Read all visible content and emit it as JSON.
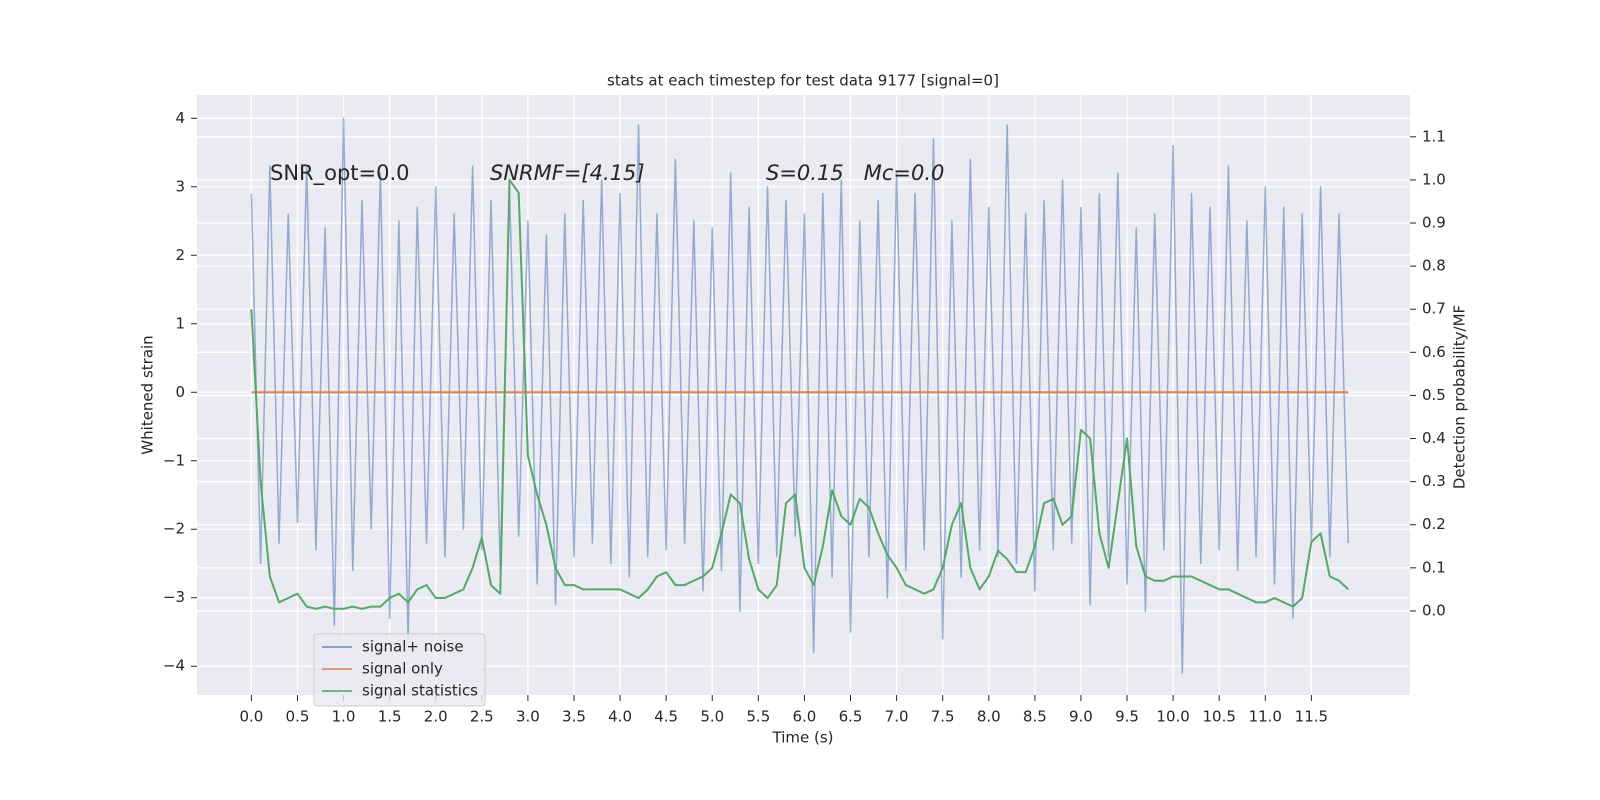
{
  "chart_data": {
    "type": "line",
    "title": "stats at each timestep for test data 9177 [signal=0]",
    "xlabel": "Time (s)",
    "ylabel": "Whitened strain",
    "y2label": "Detection probability/MF",
    "annotations": [
      "SNR_opt=0.0",
      "SNRMF=[4.15]",
      "S=0.15   Mc=0.0"
    ],
    "x": [
      0,
      0.1,
      0.2,
      0.3,
      0.4,
      0.5,
      0.6,
      0.7,
      0.8,
      0.9,
      1,
      1.1,
      1.2,
      1.3,
      1.4,
      1.5,
      1.6,
      1.7,
      1.8,
      1.9,
      2,
      2.1,
      2.2,
      2.3,
      2.4,
      2.5,
      2.6,
      2.7,
      2.8,
      2.9,
      3,
      3.1,
      3.2,
      3.3,
      3.4,
      3.5,
      3.6,
      3.7,
      3.8,
      3.9,
      4,
      4.1,
      4.2,
      4.3,
      4.4,
      4.5,
      4.6,
      4.7,
      4.8,
      4.9,
      5,
      5.1,
      5.2,
      5.3,
      5.4,
      5.5,
      5.6,
      5.7,
      5.8,
      5.9,
      6,
      6.1,
      6.2,
      6.3,
      6.4,
      6.5,
      6.6,
      6.7,
      6.8,
      6.9,
      7,
      7.1,
      7.2,
      7.3,
      7.4,
      7.5,
      7.6,
      7.7,
      7.8,
      7.9,
      8,
      8.1,
      8.2,
      8.3,
      8.4,
      8.5,
      8.6,
      8.7,
      8.8,
      8.9,
      9,
      9.1,
      9.2,
      9.3,
      9.4,
      9.5,
      9.6,
      9.7,
      9.8,
      9.9,
      10,
      10.1,
      10.2,
      10.3,
      10.4,
      10.5,
      10.6,
      10.7,
      10.8,
      10.9,
      11,
      11.1,
      11.2,
      11.3,
      11.4,
      11.5,
      11.6,
      11.7,
      11.8,
      11.9
    ],
    "series": [
      {
        "name": "signal+ noise",
        "color": "#4c72b0",
        "axis": "y",
        "values": [
          2.9,
          -2.5,
          3.3,
          -2.2,
          2.6,
          -1.9,
          3.3,
          -2.3,
          2.4,
          -3.4,
          4.0,
          -2.6,
          2.8,
          -2.0,
          3.2,
          -3.3,
          2.5,
          -3.6,
          2.7,
          -2.2,
          3.0,
          -2.4,
          2.6,
          -2.0,
          3.3,
          -2.3,
          2.8,
          -2.6,
          3.0,
          -2.1,
          2.5,
          -2.8,
          2.3,
          -3.1,
          2.6,
          -2.4,
          2.8,
          -2.2,
          3.1,
          -2.5,
          2.9,
          -2.7,
          3.9,
          -2.4,
          2.6,
          -2.3,
          3.4,
          -2.2,
          2.5,
          -2.9,
          2.4,
          -2.6,
          3.2,
          -3.2,
          2.7,
          -2.5,
          3.0,
          -2.4,
          2.8,
          -2.1,
          2.6,
          -3.8,
          2.9,
          -2.7,
          3.1,
          -3.5,
          2.5,
          -2.4,
          2.8,
          -3.0,
          3.2,
          -2.6,
          2.9,
          -2.3,
          3.7,
          -3.6,
          2.5,
          -2.7,
          3.4,
          -2.3,
          2.7,
          -2.4,
          3.9,
          -2.5,
          2.6,
          -2.9,
          2.8,
          -2.3,
          3.1,
          -2.2,
          2.7,
          -3.1,
          2.9,
          -2.4,
          3.2,
          -2.8,
          2.4,
          -3.2,
          2.6,
          -2.3,
          3.6,
          -4.1,
          2.9,
          -2.5,
          2.7,
          -2.3,
          3.3,
          -2.6,
          2.5,
          -2.4,
          3.0,
          -2.8,
          2.7,
          -3.3,
          2.6,
          -2.2,
          3.0,
          -2.4,
          2.6,
          -2.2
        ]
      },
      {
        "name": "signal only",
        "color": "#dd8452",
        "axis": "y",
        "values": [
          0,
          0,
          0,
          0,
          0,
          0,
          0,
          0,
          0,
          0,
          0,
          0,
          0,
          0,
          0,
          0,
          0,
          0,
          0,
          0,
          0,
          0,
          0,
          0,
          0,
          0,
          0,
          0,
          0,
          0,
          0,
          0,
          0,
          0,
          0,
          0,
          0,
          0,
          0,
          0,
          0,
          0,
          0,
          0,
          0,
          0,
          0,
          0,
          0,
          0,
          0,
          0,
          0,
          0,
          0,
          0,
          0,
          0,
          0,
          0,
          0,
          0,
          0,
          0,
          0,
          0,
          0,
          0,
          0,
          0,
          0,
          0,
          0,
          0,
          0,
          0,
          0,
          0,
          0,
          0,
          0,
          0,
          0,
          0,
          0,
          0,
          0,
          0,
          0,
          0,
          0,
          0,
          0,
          0,
          0,
          0,
          0,
          0,
          0,
          0,
          0,
          0,
          0,
          0,
          0,
          0,
          0,
          0,
          0,
          0,
          0,
          0,
          0,
          0,
          0,
          0,
          0,
          0,
          0,
          0
        ]
      },
      {
        "name": "signal statistics",
        "color": "#55a868",
        "axis": "y2",
        "values": [
          0.7,
          0.3,
          0.08,
          0.02,
          0.03,
          0.04,
          0.01,
          0.005,
          0.01,
          0.005,
          0.005,
          0.01,
          0.005,
          0.01,
          0.01,
          0.03,
          0.04,
          0.02,
          0.05,
          0.06,
          0.03,
          0.03,
          0.04,
          0.05,
          0.1,
          0.17,
          0.06,
          0.04,
          1.0,
          0.97,
          0.36,
          0.27,
          0.2,
          0.1,
          0.06,
          0.06,
          0.05,
          0.05,
          0.05,
          0.05,
          0.05,
          0.04,
          0.03,
          0.05,
          0.08,
          0.09,
          0.06,
          0.06,
          0.07,
          0.08,
          0.1,
          0.18,
          0.27,
          0.25,
          0.12,
          0.05,
          0.03,
          0.06,
          0.25,
          0.27,
          0.1,
          0.06,
          0.15,
          0.28,
          0.22,
          0.2,
          0.26,
          0.24,
          0.18,
          0.13,
          0.1,
          0.06,
          0.05,
          0.04,
          0.05,
          0.1,
          0.2,
          0.25,
          0.1,
          0.05,
          0.08,
          0.14,
          0.12,
          0.09,
          0.09,
          0.15,
          0.25,
          0.26,
          0.2,
          0.22,
          0.42,
          0.4,
          0.18,
          0.1,
          0.25,
          0.4,
          0.15,
          0.08,
          0.07,
          0.07,
          0.08,
          0.08,
          0.08,
          0.07,
          0.06,
          0.05,
          0.05,
          0.04,
          0.03,
          0.02,
          0.02,
          0.03,
          0.02,
          0.01,
          0.03,
          0.16,
          0.18,
          0.08,
          0.07,
          0.05
        ]
      }
    ],
    "xlim": [
      -0.59,
      12.57
    ],
    "xticks": [
      {
        "value": 0,
        "label": "0.0"
      },
      0.5,
      {
        "value": 1,
        "label": "1.0"
      },
      1.5,
      {
        "value": 2,
        "label": "2.0"
      },
      2.5,
      {
        "value": 3,
        "label": "3.0"
      },
      3.5,
      {
        "value": 4,
        "label": "4.0"
      },
      4.5,
      {
        "value": 5,
        "label": "5.0"
      },
      5.5,
      {
        "value": 6,
        "label": "6.0"
      },
      6.5,
      {
        "value": 7,
        "label": "7.0"
      },
      7.5,
      {
        "value": 8,
        "label": "8.0"
      },
      8.5,
      {
        "value": 9,
        "label": "9.0"
      },
      9.5,
      {
        "value": 10,
        "label": "10.0"
      },
      10.5,
      {
        "value": 11,
        "label": "11.0"
      },
      11.5
    ],
    "ylim": [
      -4.42,
      4.34
    ],
    "yticks": [
      {
        "value": -4,
        "label": "−4"
      },
      {
        "value": -3,
        "label": "−3"
      },
      {
        "value": -2,
        "label": "−2"
      },
      {
        "value": -1,
        "label": "−1"
      },
      0,
      1,
      2,
      3,
      4
    ],
    "y2lim": [
      -0.195,
      1.197
    ],
    "y2ticks": [
      {
        "value": 0,
        "label": "0.0"
      },
      0.1,
      0.2,
      0.3,
      0.4,
      0.5,
      0.6,
      0.7,
      0.8,
      0.9,
      {
        "value": 1,
        "label": "1.0"
      },
      1.1
    ],
    "grid": true,
    "legend": "lower left"
  }
}
